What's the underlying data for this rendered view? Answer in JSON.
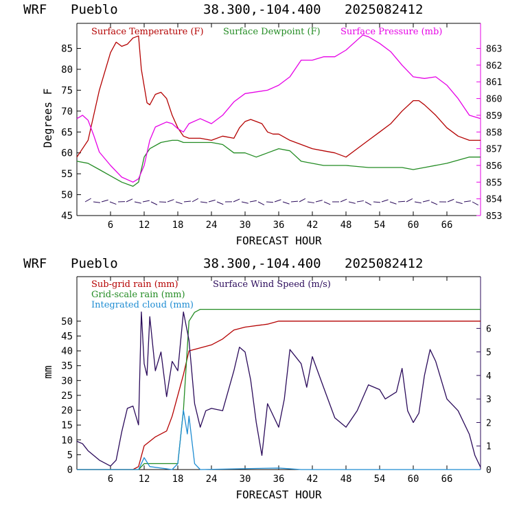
{
  "header": {
    "model": "WRF",
    "station": "Pueblo",
    "coords": "38.300,-104.400",
    "run": "2025082412"
  },
  "colors": {
    "temperature": "#b40000",
    "dewpoint": "#228b22",
    "pressure": "#e600e6",
    "subgrid_rain": "#b40000",
    "gridscale_rain": "#228b22",
    "cloud": "#1e8cd2",
    "wind": "#2a0a5a"
  },
  "chart_data": [
    {
      "type": "line",
      "xlabel": "FORECAST HOUR",
      "ylabel": "Degrees F",
      "xlim": [
        0,
        72
      ],
      "ylim": [
        45,
        91
      ],
      "y2lim": [
        853,
        864.5
      ],
      "x_ticks": [
        "6",
        "12",
        "18",
        "24",
        "30",
        "36",
        "42",
        "48",
        "54",
        "60",
        "66"
      ],
      "y_ticks": [
        "45",
        "50",
        "55",
        "60",
        "65",
        "70",
        "75",
        "80",
        "85"
      ],
      "y2_ticks": [
        "853",
        "854",
        "855",
        "856",
        "857",
        "858",
        "859",
        "860",
        "861",
        "862",
        "863"
      ],
      "legend": [
        "Surface Temperature (F)",
        "Surface Dewpoint (F)",
        "Surface Pressure (mb)"
      ],
      "series": [
        {
          "name": "Surface Temperature (F)",
          "axis": "left",
          "points": [
            [
              0,
              59
            ],
            [
              2,
              63
            ],
            [
              4,
              75
            ],
            [
              6,
              84
            ],
            [
              7,
              86.5
            ],
            [
              8,
              85.5
            ],
            [
              9,
              86
            ],
            [
              10,
              87.5
            ],
            [
              11,
              88
            ],
            [
              11.5,
              80
            ],
            [
              12.5,
              72
            ],
            [
              13,
              71.5
            ],
            [
              14,
              74
            ],
            [
              15,
              74.5
            ],
            [
              16,
              73
            ],
            [
              17,
              69
            ],
            [
              18,
              66
            ],
            [
              19,
              64
            ],
            [
              20,
              63.5
            ],
            [
              22,
              63.5
            ],
            [
              24,
              63
            ],
            [
              26,
              64
            ],
            [
              28,
              63.5
            ],
            [
              29,
              66
            ],
            [
              30,
              67.5
            ],
            [
              31,
              68
            ],
            [
              32,
              67.5
            ],
            [
              33,
              67
            ],
            [
              34,
              65
            ],
            [
              35,
              64.5
            ],
            [
              36,
              64.5
            ],
            [
              38,
              63
            ],
            [
              40,
              62
            ],
            [
              42,
              61
            ],
            [
              44,
              60.5
            ],
            [
              46,
              60
            ],
            [
              48,
              59
            ],
            [
              50,
              61
            ],
            [
              52,
              63
            ],
            [
              54,
              65
            ],
            [
              56,
              67
            ],
            [
              58,
              70
            ],
            [
              60,
              72.5
            ],
            [
              61,
              72.5
            ],
            [
              62,
              71.5
            ],
            [
              64,
              69
            ],
            [
              66,
              66
            ],
            [
              68,
              64
            ],
            [
              70,
              63
            ],
            [
              72,
              63
            ]
          ]
        },
        {
          "name": "Surface Dewpoint (F)",
          "axis": "left",
          "points": [
            [
              0,
              58
            ],
            [
              2,
              57.5
            ],
            [
              4,
              56
            ],
            [
              6,
              54.5
            ],
            [
              8,
              53
            ],
            [
              10,
              52
            ],
            [
              11,
              53
            ],
            [
              12,
              59
            ],
            [
              13,
              61
            ],
            [
              15,
              62.5
            ],
            [
              17,
              63
            ],
            [
              18,
              63
            ],
            [
              19,
              62.5
            ],
            [
              21,
              62.5
            ],
            [
              24,
              62.5
            ],
            [
              26,
              62
            ],
            [
              28,
              60
            ],
            [
              30,
              60
            ],
            [
              32,
              59
            ],
            [
              34,
              60
            ],
            [
              36,
              61
            ],
            [
              38,
              60.5
            ],
            [
              40,
              58
            ],
            [
              44,
              57
            ],
            [
              48,
              57
            ],
            [
              52,
              56.5
            ],
            [
              56,
              56.5
            ],
            [
              58,
              56.5
            ],
            [
              60,
              56
            ],
            [
              62,
              56.5
            ],
            [
              66,
              57.5
            ],
            [
              70,
              59
            ],
            [
              72,
              59
            ]
          ]
        },
        {
          "name": "Surface Pressure (mb)",
          "axis": "right",
          "points": [
            [
              0,
              858.8
            ],
            [
              1,
              859
            ],
            [
              2,
              858.7
            ],
            [
              3,
              857.8
            ],
            [
              4,
              856.8
            ],
            [
              6,
              856
            ],
            [
              8,
              855.3
            ],
            [
              10,
              855
            ],
            [
              11,
              855.2
            ],
            [
              12,
              856
            ],
            [
              13,
              857.5
            ],
            [
              14,
              858.3
            ],
            [
              16,
              858.6
            ],
            [
              17,
              858.5
            ],
            [
              18,
              858.2
            ],
            [
              19,
              858
            ],
            [
              20,
              858.5
            ],
            [
              22,
              858.8
            ],
            [
              24,
              858.5
            ],
            [
              26,
              859
            ],
            [
              28,
              859.8
            ],
            [
              30,
              860.3
            ],
            [
              34,
              860.5
            ],
            [
              36,
              860.8
            ],
            [
              38,
              861.3
            ],
            [
              40,
              862.3
            ],
            [
              42,
              862.3
            ],
            [
              44,
              862.5
            ],
            [
              46,
              862.5
            ],
            [
              48,
              862.9
            ],
            [
              50,
              863.5
            ],
            [
              51,
              863.8
            ],
            [
              52,
              863.7
            ],
            [
              54,
              863.3
            ],
            [
              56,
              862.8
            ],
            [
              58,
              862
            ],
            [
              60,
              861.3
            ],
            [
              62,
              861.2
            ],
            [
              64,
              861.3
            ],
            [
              66,
              860.8
            ],
            [
              68,
              860
            ],
            [
              70,
              859
            ],
            [
              72,
              858.8
            ]
          ]
        }
      ]
    },
    {
      "type": "line",
      "xlabel": "FORECAST HOUR",
      "ylabel": "mm",
      "xlim": [
        0,
        72
      ],
      "ylim": [
        0,
        65
      ],
      "y2lim": [
        0,
        8.2
      ],
      "x_ticks": [
        "6",
        "12",
        "18",
        "24",
        "30",
        "36",
        "42",
        "48",
        "54",
        "60",
        "66"
      ],
      "y_ticks": [
        "0",
        "5",
        "10",
        "15",
        "20",
        "25",
        "30",
        "35",
        "40",
        "45",
        "50"
      ],
      "y2_ticks": [
        "0",
        "1",
        "2",
        "3",
        "4",
        "5",
        "6"
      ],
      "legend": [
        "Sub-grid rain (mm)",
        "Surface Wind Speed (m/s)",
        "Grid-scale rain (mm)",
        "Integrated cloud (mm)"
      ],
      "series": [
        {
          "name": "Sub-grid rain (mm)",
          "axis": "left",
          "points": [
            [
              0,
              0
            ],
            [
              10,
              0
            ],
            [
              11,
              1
            ],
            [
              12,
              8
            ],
            [
              14,
              11
            ],
            [
              16,
              13
            ],
            [
              17,
              18
            ],
            [
              18,
              25
            ],
            [
              19,
              32
            ],
            [
              20,
              40
            ],
            [
              22,
              41
            ],
            [
              24,
              42
            ],
            [
              26,
              44
            ],
            [
              28,
              47
            ],
            [
              30,
              48
            ],
            [
              34,
              49
            ],
            [
              36,
              50
            ],
            [
              40,
              50
            ],
            [
              72,
              50
            ]
          ]
        },
        {
          "name": "Grid-scale rain (mm)",
          "axis": "left",
          "points": [
            [
              0,
              0
            ],
            [
              11,
              0
            ],
            [
              12,
              2
            ],
            [
              18,
              2
            ],
            [
              19,
              20
            ],
            [
              20,
              50
            ],
            [
              21,
              53
            ],
            [
              22,
              54
            ],
            [
              72,
              54
            ]
          ]
        },
        {
          "name": "Integrated cloud (mm)",
          "axis": "left",
          "points": [
            [
              0,
              0
            ],
            [
              11,
              0
            ],
            [
              12,
              4
            ],
            [
              13,
              1
            ],
            [
              17,
              0
            ],
            [
              18,
              2
            ],
            [
              19,
              20
            ],
            [
              19.7,
              12
            ],
            [
              20,
              18
            ],
            [
              21,
              2
            ],
            [
              22,
              0
            ],
            [
              36,
              0.5
            ],
            [
              40,
              0
            ],
            [
              72,
              0
            ]
          ]
        },
        {
          "name": "Surface Wind Speed (m/s)",
          "axis": "right",
          "points": [
            [
              0,
              1.2
            ],
            [
              1,
              1.1
            ],
            [
              2,
              0.8
            ],
            [
              4,
              0.4
            ],
            [
              6,
              0.15
            ],
            [
              7,
              0.4
            ],
            [
              8,
              1.6
            ],
            [
              9,
              2.6
            ],
            [
              10,
              2.7
            ],
            [
              11,
              1.9
            ],
            [
              11.5,
              6.7
            ],
            [
              12,
              4.5
            ],
            [
              12.5,
              4
            ],
            [
              13,
              6.5
            ],
            [
              14,
              4.2
            ],
            [
              15,
              5
            ],
            [
              16,
              3.1
            ],
            [
              17,
              4.6
            ],
            [
              18,
              4.2
            ],
            [
              19,
              6.7
            ],
            [
              20,
              5.5
            ],
            [
              21,
              2.8
            ],
            [
              22,
              1.8
            ],
            [
              23,
              2.5
            ],
            [
              24,
              2.6
            ],
            [
              26,
              2.5
            ],
            [
              28,
              4.2
            ],
            [
              29,
              5.2
            ],
            [
              30,
              5
            ],
            [
              31,
              3.8
            ],
            [
              32,
              2
            ],
            [
              33,
              0.6
            ],
            [
              34,
              2.8
            ],
            [
              36,
              1.8
            ],
            [
              37,
              3
            ],
            [
              38,
              5.1
            ],
            [
              40,
              4.5
            ],
            [
              41,
              3.5
            ],
            [
              42,
              4.8
            ],
            [
              44,
              3.5
            ],
            [
              46,
              2.2
            ],
            [
              48,
              1.8
            ],
            [
              50,
              2.5
            ],
            [
              52,
              3.6
            ],
            [
              54,
              3.4
            ],
            [
              55,
              3
            ],
            [
              57,
              3.3
            ],
            [
              58,
              4.3
            ],
            [
              59,
              2.5
            ],
            [
              60,
              2
            ],
            [
              61,
              2.4
            ],
            [
              62,
              4
            ],
            [
              63,
              5.1
            ],
            [
              64,
              4.6
            ],
            [
              66,
              3
            ],
            [
              68,
              2.5
            ],
            [
              70,
              1.5
            ],
            [
              71,
              0.6
            ],
            [
              72,
              0.1
            ]
          ]
        }
      ]
    }
  ]
}
